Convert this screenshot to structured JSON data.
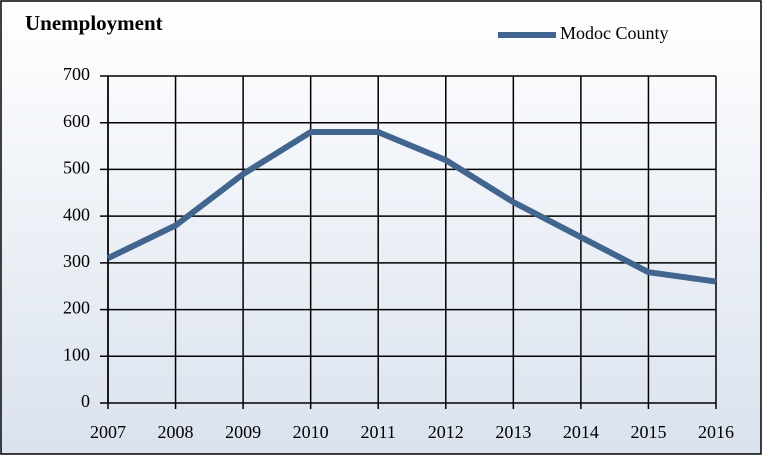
{
  "chart_data": {
    "type": "line",
    "title": "Unemployment",
    "categories": [
      "2007",
      "2008",
      "2009",
      "2010",
      "2011",
      "2012",
      "2013",
      "2014",
      "2015",
      "2016"
    ],
    "series": [
      {
        "name": "Modoc County",
        "color": "#41658f",
        "values": [
          310,
          380,
          490,
          580,
          580,
          520,
          430,
          355,
          280,
          260
        ]
      }
    ],
    "ylim": [
      0,
      700
    ],
    "yticks": [
      0,
      100,
      200,
      300,
      400,
      500,
      600,
      700
    ],
    "grid": true,
    "legend": "top-right"
  }
}
